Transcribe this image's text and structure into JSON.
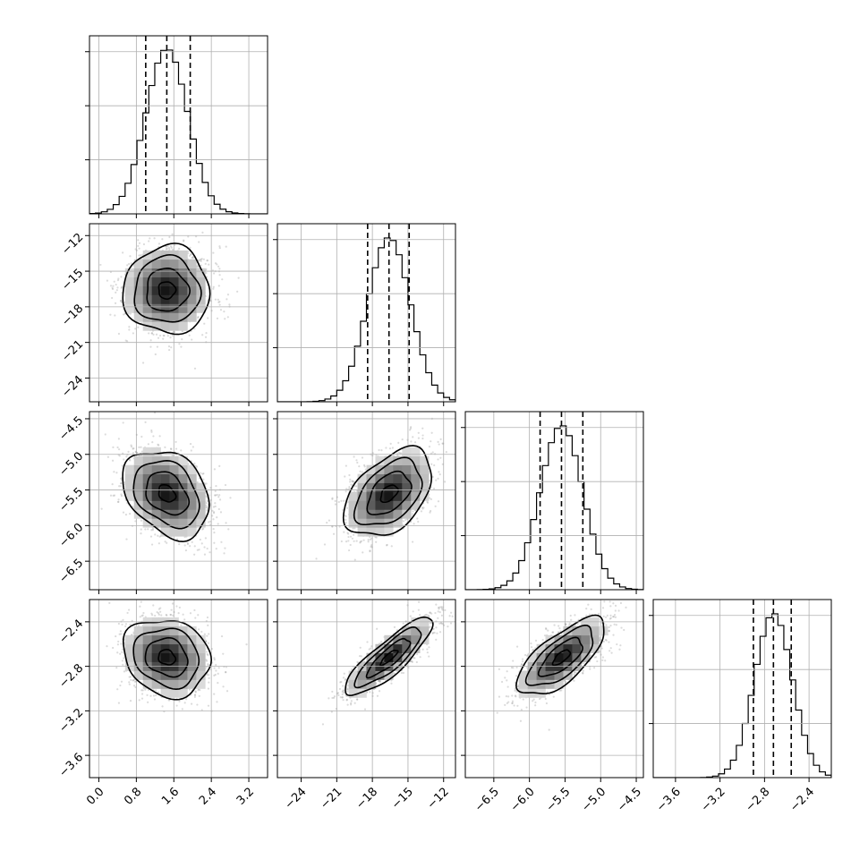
{
  "chart_data": {
    "type": "corner",
    "grid": true,
    "parameters": [
      {
        "range": [
          -0.2,
          3.6
        ],
        "ticks": [
          0.0,
          0.8,
          1.6,
          2.4,
          3.2
        ],
        "tick_labels": [
          "0.0",
          "0.8",
          "1.6",
          "2.4",
          "3.2"
        ],
        "mean": 1.45,
        "sd": 0.45,
        "quantiles": [
          1.0,
          1.45,
          1.95
        ]
      },
      {
        "range": [
          -26.0,
          -11.0
        ],
        "ticks": [
          -24,
          -21,
          -18,
          -15,
          -12
        ],
        "tick_labels": [
          "−24",
          "−21",
          "−18",
          "−15",
          "−12"
        ],
        "mean": -16.6,
        "sd": 1.8,
        "quantiles": [
          -18.4,
          -16.6,
          -14.9
        ]
      },
      {
        "range": [
          -6.9,
          -4.4
        ],
        "ticks": [
          -6.5,
          -6.0,
          -5.5,
          -5.0,
          -4.5
        ],
        "tick_labels": [
          "−6.5",
          "−6.0",
          "−5.5",
          "−5.0",
          "−4.5"
        ],
        "mean": -5.55,
        "sd": 0.3,
        "quantiles": [
          -5.85,
          -5.55,
          -5.25
        ]
      },
      {
        "range": [
          -3.8,
          -2.2
        ],
        "ticks": [
          -3.6,
          -3.2,
          -2.8,
          -2.4
        ],
        "tick_labels": [
          "−3.6",
          "−3.2",
          "−2.8",
          "−2.4"
        ],
        "mean": -2.72,
        "sd": 0.17,
        "quantiles": [
          -2.9,
          -2.72,
          -2.56
        ]
      }
    ],
    "correlations": {
      "1-0": 0.0,
      "2-0": -0.3,
      "2-1": 0.45,
      "3-0": -0.15,
      "3-1": 0.85,
      "3-2": 0.7
    }
  }
}
